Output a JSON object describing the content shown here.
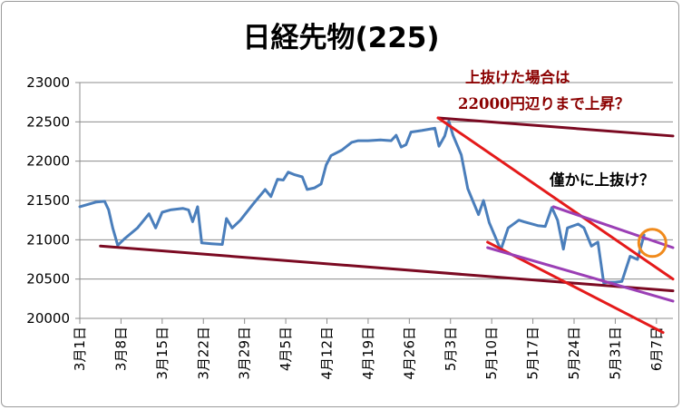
{
  "chart_data": {
    "type": "line",
    "title": "日経先物(225)",
    "xlabel": "",
    "ylabel": "",
    "ylim": [
      20000,
      23000
    ],
    "y_ticks": [
      20000,
      20500,
      21000,
      21500,
      22000,
      22500,
      23000
    ],
    "x_ticks": [
      {
        "i": 0,
        "label": "3月1日"
      },
      {
        "i": 5,
        "label": "3月8日"
      },
      {
        "i": 10,
        "label": "3月15日"
      },
      {
        "i": 15,
        "label": "3月22日"
      },
      {
        "i": 20,
        "label": "3月29日"
      },
      {
        "i": 25,
        "label": "4月5日"
      },
      {
        "i": 30,
        "label": "4月12日"
      },
      {
        "i": 35,
        "label": "4月19日"
      },
      {
        "i": 40,
        "label": "4月26日"
      },
      {
        "i": 45,
        "label": "5月3日"
      },
      {
        "i": 50,
        "label": "5月10日"
      },
      {
        "i": 55,
        "label": "5月17日"
      },
      {
        "i": 60,
        "label": "5月24日"
      },
      {
        "i": 65,
        "label": "5月31日"
      },
      {
        "i": 70,
        "label": "6月7日"
      }
    ],
    "series": [
      {
        "color": "#4a7ebb",
        "points": [
          [
            0,
            21420
          ],
          [
            1,
            21450
          ],
          [
            2,
            21480
          ],
          [
            3,
            21490
          ],
          [
            3.5,
            21380
          ],
          [
            4,
            21150
          ],
          [
            4.6,
            20930
          ],
          [
            5.5,
            21020
          ],
          [
            7,
            21150
          ],
          [
            8.4,
            21330
          ],
          [
            9.2,
            21150
          ],
          [
            10,
            21350
          ],
          [
            11,
            21380
          ],
          [
            12.5,
            21400
          ],
          [
            13.2,
            21380
          ],
          [
            13.7,
            21230
          ],
          [
            14.3,
            21420
          ],
          [
            14.8,
            20960
          ],
          [
            16,
            20950
          ],
          [
            17.3,
            20940
          ],
          [
            17.8,
            21270
          ],
          [
            18.5,
            21150
          ],
          [
            19.5,
            21250
          ],
          [
            21,
            21450
          ],
          [
            22.5,
            21640
          ],
          [
            23.2,
            21550
          ],
          [
            24,
            21770
          ],
          [
            24.7,
            21760
          ],
          [
            25.3,
            21860
          ],
          [
            26,
            21830
          ],
          [
            27,
            21800
          ],
          [
            27.6,
            21640
          ],
          [
            28.5,
            21660
          ],
          [
            29.3,
            21710
          ],
          [
            29.9,
            21950
          ],
          [
            30.5,
            22070
          ],
          [
            31.8,
            22140
          ],
          [
            33,
            22240
          ],
          [
            33.8,
            22260
          ],
          [
            35,
            22260
          ],
          [
            36.5,
            22270
          ],
          [
            37.8,
            22260
          ],
          [
            38.4,
            22330
          ],
          [
            39,
            22180
          ],
          [
            39.6,
            22210
          ],
          [
            40.2,
            22370
          ],
          [
            41.5,
            22390
          ],
          [
            42.6,
            22410
          ],
          [
            43.1,
            22420
          ],
          [
            43.6,
            22190
          ],
          [
            44.3,
            22320
          ],
          [
            44.8,
            22510
          ],
          [
            45.3,
            22330
          ],
          [
            46.3,
            22080
          ],
          [
            47.1,
            21650
          ],
          [
            48.4,
            21320
          ],
          [
            49,
            21500
          ],
          [
            49.7,
            21220
          ],
          [
            51.1,
            20870
          ],
          [
            52,
            21150
          ],
          [
            53.3,
            21250
          ],
          [
            53.9,
            21230
          ],
          [
            55.6,
            21180
          ],
          [
            56.5,
            21170
          ],
          [
            57.3,
            21410
          ],
          [
            58,
            21250
          ],
          [
            58.7,
            20880
          ],
          [
            59.2,
            21150
          ],
          [
            60.5,
            21200
          ],
          [
            61.2,
            21150
          ],
          [
            62.1,
            20920
          ],
          [
            62.9,
            20970
          ],
          [
            63.6,
            20450
          ],
          [
            64.1,
            20460
          ],
          [
            65,
            20460
          ],
          [
            65.8,
            20470
          ],
          [
            66.8,
            20790
          ],
          [
            67.7,
            20750
          ],
          [
            68.5,
            21060
          ]
        ]
      }
    ],
    "trendlines": [
      {
        "color": "#7b0a22",
        "from": [
          43.5,
          22550
        ],
        "to": [
          72,
          22320
        ]
      },
      {
        "color": "#7b0a22",
        "from": [
          2.5,
          20920
        ],
        "to": [
          72,
          20350
        ]
      },
      {
        "color": "#e41a1a",
        "from": [
          43.5,
          22550
        ],
        "to": [
          72,
          20500
        ]
      },
      {
        "color": "#e41a1a",
        "from": [
          49.5,
          20970
        ],
        "to": [
          70.8,
          19820
        ]
      },
      {
        "color": "#9b3fb5",
        "from": [
          57.5,
          21420
        ],
        "to": [
          72,
          20900
        ]
      },
      {
        "color": "#9b3fb5",
        "from": [
          49.5,
          20900
        ],
        "to": [
          72,
          20220
        ]
      }
    ],
    "highlight_circle": {
      "color": "#f08a1c",
      "center": [
        69.5,
        20960
      ]
    },
    "annotations": [
      {
        "text": "上抜けた場合は",
        "color": "#8b0000"
      },
      {
        "text": "22000円辺りまで上昇？",
        "color": "#8b0000"
      },
      {
        "text": "僅かに上抜け？",
        "color": "#000000"
      }
    ]
  }
}
